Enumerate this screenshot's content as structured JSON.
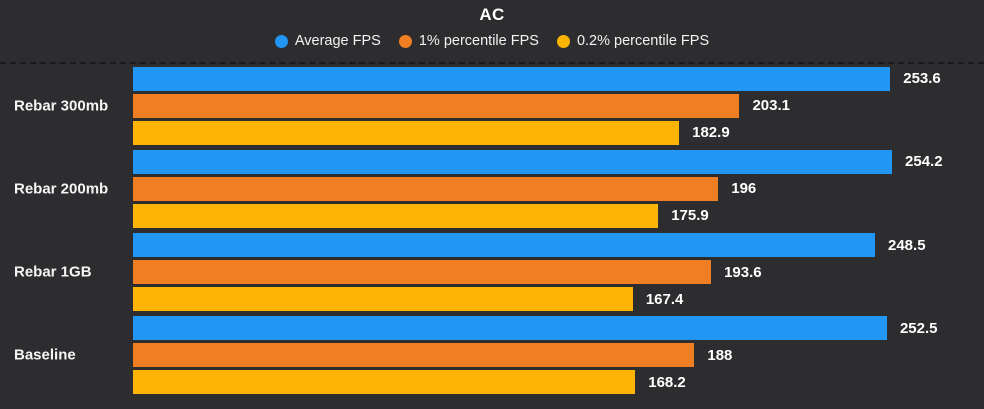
{
  "title": "AC",
  "legend": [
    {
      "label": "Average FPS",
      "color": "#2196f3",
      "marker": "circle-icon"
    },
    {
      "label": "1% percentile FPS",
      "color": "#ef7f22",
      "marker": "circle-icon"
    },
    {
      "label": "0.2% percentile FPS",
      "color": "#fdb405",
      "marker": "circle-icon"
    }
  ],
  "chart_data": {
    "type": "bar",
    "orientation": "horizontal",
    "title": "AC",
    "categories": [
      "Rebar 300mb",
      "Rebar 200mb",
      "Rebar 1GB",
      "Baseline"
    ],
    "series": [
      {
        "name": "Average FPS",
        "color": "#2196f3",
        "values": [
          253.6,
          254.2,
          248.5,
          252.5
        ]
      },
      {
        "name": "1% percentile FPS",
        "color": "#ef7f22",
        "values": [
          203.1,
          196,
          193.6,
          188
        ]
      },
      {
        "name": "0.2% percentile FPS",
        "color": "#fdb405",
        "values": [
          182.9,
          175.9,
          167.4,
          168.2
        ]
      }
    ],
    "xlabel": "",
    "ylabel": "",
    "xlim": [
      0,
      285
    ],
    "grid": false,
    "gridline_style": "dashed-top-only",
    "legend_position": "top",
    "value_labels": "outside-end"
  },
  "colors": {
    "background": "#2d2d30",
    "text": "#f2f2f2",
    "value_text": "#ffffff",
    "gridline": "#1a1a1c"
  }
}
